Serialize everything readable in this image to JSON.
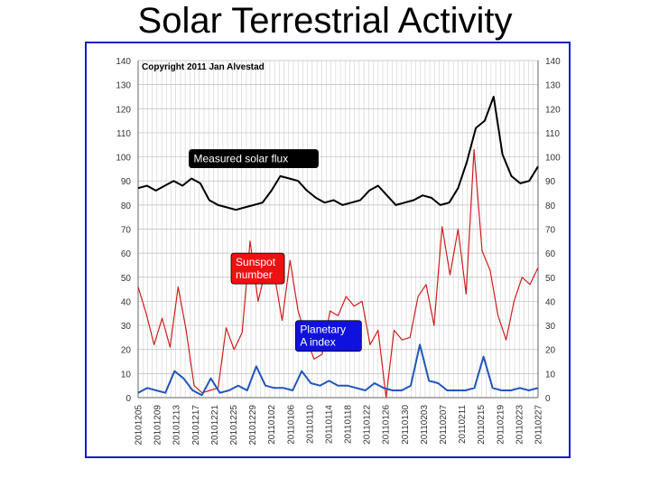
{
  "slide_title": "Solar Terrestrial Activity",
  "chart_data": {
    "type": "line",
    "copyright": "Copyright 2011 Jan Alvestad",
    "ylim": [
      0,
      140
    ],
    "y_ticks": [
      0,
      10,
      20,
      30,
      40,
      50,
      60,
      70,
      80,
      90,
      100,
      110,
      120,
      130,
      140
    ],
    "x_tick_labels": [
      "20101225",
      "20101229",
      "20110102",
      "20110106",
      "20110110",
      "20110114",
      "20110118",
      "20110122",
      "20110126",
      "20110130",
      "20110203",
      "20110207",
      "20110211",
      "20110215",
      "20110219",
      "20110223",
      "20110227"
    ],
    "x_tick_labels_actual": [
      "20101205",
      "20101209",
      "20101213",
      "20101217",
      "20101221",
      "20101225",
      "20101229",
      "20110102",
      "20110106",
      "20110110",
      "20110114",
      "20110118",
      "20110122",
      "20110126",
      "20110130",
      "20110203",
      "20110207",
      "20110211",
      "20110215",
      "20110219",
      "20110223",
      "20110227"
    ],
    "series": [
      {
        "name": "Measured solar flux",
        "label_lines": [
          "Measured solar flux"
        ],
        "color": "#000000",
        "label_bg": "#000000",
        "label_fg": "#ffffff",
        "label_anchor": [
          15,
          103
        ],
        "values": [
          87,
          88,
          86,
          88,
          90,
          88,
          91,
          89,
          82,
          80,
          79,
          78,
          79,
          80,
          81,
          86,
          92,
          91,
          90,
          86,
          83,
          81,
          82,
          80,
          81,
          82,
          86,
          88,
          84,
          80,
          81,
          82,
          84,
          83,
          80,
          81,
          87,
          98,
          112,
          115,
          125,
          101,
          92,
          89,
          90,
          96
        ]
      },
      {
        "name": "Sunspot number",
        "label_lines": [
          "Sunspot",
          "number"
        ],
        "color": "#cc1f1f",
        "label_bg": "#ee1111",
        "label_fg": "#ffffff",
        "label_anchor": [
          30,
          60
        ],
        "values": [
          46,
          35,
          22,
          33,
          21,
          46,
          28,
          5,
          2,
          3,
          4,
          29,
          20,
          27,
          65,
          40,
          54,
          52,
          32,
          57,
          36,
          25,
          16,
          18,
          36,
          34,
          42,
          38,
          40,
          22,
          28,
          0,
          28,
          24,
          25,
          42,
          47,
          30,
          71,
          51,
          70,
          43,
          103,
          61,
          53,
          34,
          24,
          40,
          50,
          47,
          54
        ]
      },
      {
        "name": "Planetary A index",
        "label_lines": [
          "Planetary",
          "A index"
        ],
        "color": "#2255bb",
        "label_bg": "#1111dd",
        "label_fg": "#ffffff",
        "label_anchor": [
          53,
          32
        ],
        "values": [
          2,
          4,
          3,
          2,
          11,
          8,
          3,
          1,
          8,
          2,
          3,
          5,
          3,
          13,
          5,
          4,
          4,
          3,
          11,
          6,
          5,
          7,
          5,
          5,
          4,
          3,
          6,
          4,
          3,
          3,
          5,
          22,
          7,
          6,
          3,
          3,
          3,
          4,
          17,
          4,
          3,
          3,
          4,
          3,
          4
        ]
      }
    ]
  }
}
